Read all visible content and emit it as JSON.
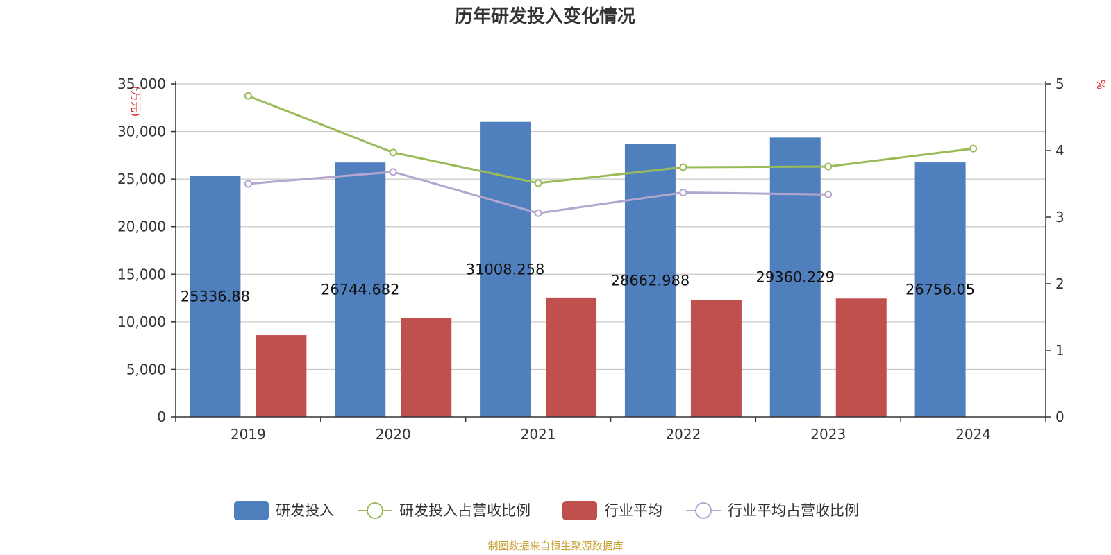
{
  "chart_data": {
    "type": "bar",
    "title": "历年研发投入变化情况",
    "categories": [
      "2019",
      "2020",
      "2021",
      "2022",
      "2023",
      "2024"
    ],
    "y_left": {
      "unit_label": "(万元)",
      "ylim": [
        0,
        35000
      ],
      "ticks": [
        "0",
        "5,000",
        "10,000",
        "15,000",
        "20,000",
        "25,000",
        "30,000",
        "35,000"
      ]
    },
    "y_right": {
      "unit_label": "%",
      "ylim": [
        0,
        5
      ],
      "ticks": [
        "0",
        "1",
        "2",
        "3",
        "4",
        "5"
      ]
    },
    "grid": true,
    "legend_position": "bottom-center",
    "series": [
      {
        "name": "研发投入",
        "type": "bar",
        "axis": "left",
        "color": "#4f7fbd",
        "values": [
          25336.88,
          26744.682,
          31008.258,
          28662.988,
          29360.229,
          26756.05
        ],
        "labels": [
          "25336.88",
          "26744.682",
          "31008.258",
          "28662.988",
          "29360.229",
          "26756.05"
        ]
      },
      {
        "name": "研发投入占营收比例",
        "type": "line",
        "axis": "right",
        "color": "#9bbb59",
        "values": [
          4.82,
          3.97,
          3.51,
          3.75,
          3.76,
          4.03
        ]
      },
      {
        "name": "行业平均",
        "type": "bar",
        "axis": "left",
        "color": "#c0504d",
        "values": [
          8600,
          10400,
          12550,
          12300,
          12450,
          null
        ]
      },
      {
        "name": "行业平均占营收比例",
        "type": "line",
        "axis": "right",
        "color": "#b3a7d1",
        "values": [
          3.5,
          3.68,
          3.06,
          3.37,
          3.34,
          null
        ]
      }
    ]
  },
  "source_note": "制图数据来自恒生聚源数据库"
}
